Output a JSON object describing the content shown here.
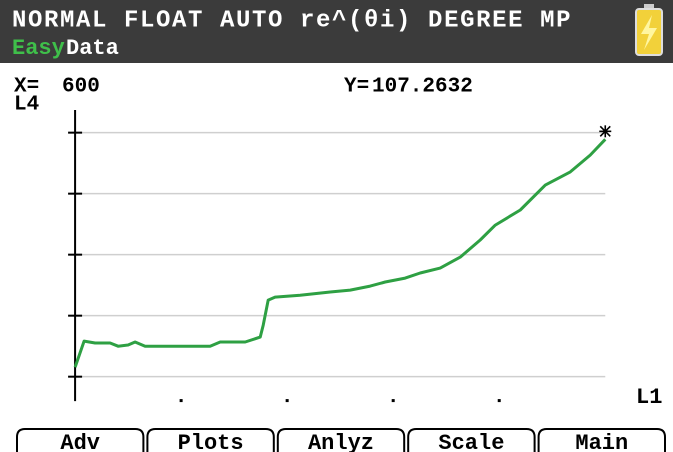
{
  "status_bar": {
    "mode": "NORMAL FLOAT AUTO re^(θi) DEGREE MP",
    "app_prefix": "Easy",
    "app_name": "Data"
  },
  "cursor": {
    "x_label": "X=",
    "x": 600,
    "y_label": "Y=",
    "y": 107.2632
  },
  "chart_data": {
    "type": "line",
    "xlabel": "L1",
    "ylabel": "L4",
    "color": "#2ea043",
    "x": [
      0,
      10.2,
      22.6,
      39.6,
      48.7,
      60.0,
      67.9,
      79.2,
      96.2,
      152.8,
      164.2,
      192.5,
      209.5,
      212.9,
      218.6,
      226.4,
      254.7,
      288.7,
      311.3,
      334.0,
      351.0,
      373.6,
      390.6,
      413.2,
      435.9,
      458.5,
      475.5,
      503.8,
      532.1,
      560.4,
      583.0,
      600
    ],
    "values": [
      13.9,
      24.6,
      23.8,
      23.8,
      22.5,
      23.0,
      24.2,
      22.5,
      22.5,
      22.5,
      24.2,
      24.2,
      26.2,
      31.1,
      41.4,
      42.6,
      43.4,
      44.7,
      45.5,
      47.1,
      48.8,
      50.4,
      52.5,
      54.5,
      59.0,
      66.0,
      72.1,
      78.3,
      88.5,
      93.9,
      100.8,
      107.2632
    ],
    "xlim": [
      -68,
      671
    ],
    "xticks": [
      120,
      240,
      360,
      480
    ],
    "ylim": [
      -9.8,
      124.2
    ],
    "yticks": [
      10,
      35,
      60,
      85,
      110
    ],
    "grid": true
  },
  "softkeys": [
    "Adv",
    "Plots",
    "Anlyz",
    "Scale",
    "Main"
  ]
}
